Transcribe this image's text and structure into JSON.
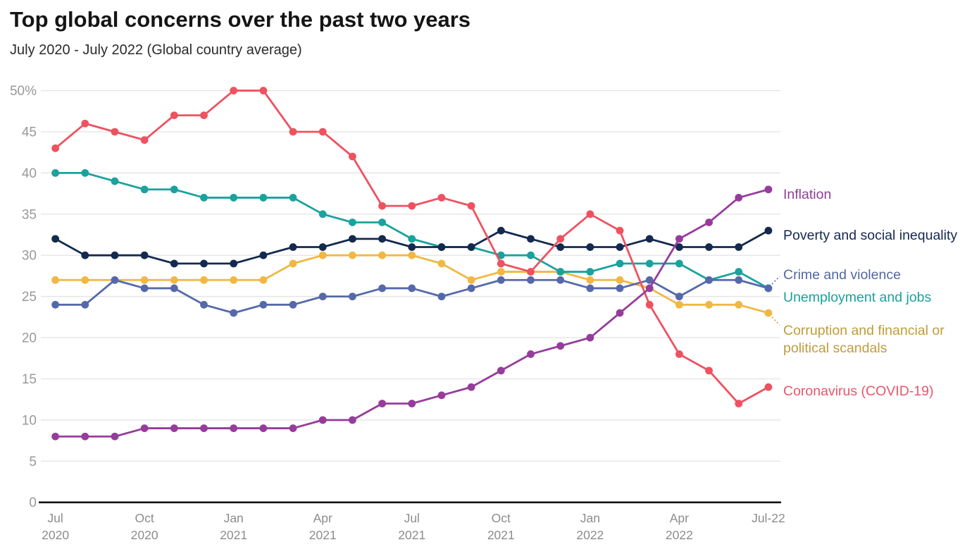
{
  "header": {
    "title": "Top global concerns over the past two years",
    "subtitle": "July 2020 - July 2022 (Global country average)"
  },
  "chart_data": {
    "type": "line",
    "title": "Top global concerns over the past two years",
    "subtitle": "July 2020 - July 2022 (Global country average)",
    "unit": "%",
    "ylim": [
      0,
      50
    ],
    "grid": "horizontal",
    "legend_position": "right-edge-labels",
    "x_categories": [
      "Jul 2020",
      "Aug 2020",
      "Sep 2020",
      "Oct 2020",
      "Nov 2020",
      "Dec 2020",
      "Jan 2021",
      "Feb 2021",
      "Mar 2021",
      "Apr 2021",
      "May 2021",
      "Jun 2021",
      "Jul 2021",
      "Aug 2021",
      "Sep 2021",
      "Oct 2021",
      "Nov 2021",
      "Dec 2021",
      "Jan 2022",
      "Feb 2022",
      "Mar 2022",
      "Apr 2022",
      "May 2022",
      "Jun 2022",
      "Jul 2022"
    ],
    "xticks": [
      {
        "month_index": 0,
        "line1": "Jul",
        "line2": "2020"
      },
      {
        "month_index": 3,
        "line1": "Oct",
        "line2": "2020"
      },
      {
        "month_index": 6,
        "line1": "Jan",
        "line2": "2021"
      },
      {
        "month_index": 9,
        "line1": "Apr",
        "line2": "2021"
      },
      {
        "month_index": 12,
        "line1": "Jul",
        "line2": "2021"
      },
      {
        "month_index": 15,
        "line1": "Oct",
        "line2": "2021"
      },
      {
        "month_index": 18,
        "line1": "Jan",
        "line2": "2022"
      },
      {
        "month_index": 21,
        "line1": "Apr",
        "line2": "2022"
      },
      {
        "month_index": 24,
        "line1": "Jul-22",
        "line2": ""
      }
    ],
    "yticks": [
      {
        "value": 50,
        "label": "50%"
      },
      {
        "value": 45,
        "label": "45"
      },
      {
        "value": 40,
        "label": "40"
      },
      {
        "value": 35,
        "label": "35"
      },
      {
        "value": 30,
        "label": "30"
      },
      {
        "value": 25,
        "label": "25"
      },
      {
        "value": 20,
        "label": "20"
      },
      {
        "value": 15,
        "label": "15"
      },
      {
        "value": 10,
        "label": "10"
      },
      {
        "value": 5,
        "label": "5"
      },
      {
        "value": 0,
        "label": "0"
      }
    ],
    "series": [
      {
        "key": "corruption",
        "label_lines": [
          "Corruption and financial or",
          "political scandals"
        ],
        "color": "#f0b843",
        "label_color": "#bf9d3a",
        "leader": true,
        "values": [
          27,
          27,
          27,
          27,
          27,
          27,
          27,
          27,
          29,
          30,
          30,
          30,
          30,
          29,
          27,
          28,
          28,
          28,
          27,
          27,
          26,
          24,
          24,
          24,
          23
        ]
      },
      {
        "key": "unemployment",
        "label_lines": [
          "Unemployment and jobs"
        ],
        "color": "#1aa29e",
        "label_color": "#1aa29e",
        "leader": false,
        "values": [
          40,
          40,
          39,
          38,
          38,
          37,
          37,
          37,
          37,
          35,
          34,
          34,
          32,
          31,
          31,
          30,
          30,
          28,
          28,
          29,
          29,
          29,
          27,
          28,
          26
        ]
      },
      {
        "key": "crime",
        "label_lines": [
          "Crime and violence"
        ],
        "color": "#5569aa",
        "label_color": "#52689f",
        "leader": true,
        "values": [
          24,
          24,
          27,
          26,
          26,
          24,
          23,
          24,
          24,
          25,
          25,
          26,
          26,
          25,
          26,
          27,
          27,
          27,
          26,
          26,
          27,
          25,
          27,
          27,
          26
        ]
      },
      {
        "key": "poverty",
        "label_lines": [
          "Poverty and social inequality"
        ],
        "color": "#14294e",
        "label_color": "#14294e",
        "leader": false,
        "values": [
          32,
          30,
          30,
          30,
          29,
          29,
          29,
          30,
          31,
          31,
          32,
          32,
          31,
          31,
          31,
          33,
          32,
          31,
          31,
          31,
          32,
          31,
          31,
          31,
          33
        ]
      },
      {
        "key": "coronavirus",
        "label_lines": [
          "Coronavirus (COVID-19)"
        ],
        "color": "#ee5260",
        "label_color": "#e8566b",
        "leader": false,
        "values": [
          43,
          46,
          45,
          44,
          47,
          47,
          50,
          50,
          45,
          45,
          42,
          36,
          36,
          37,
          36,
          29,
          28,
          32,
          35,
          33,
          24,
          18,
          16,
          12,
          14
        ]
      },
      {
        "key": "inflation",
        "label_lines": [
          "Inflation"
        ],
        "color": "#963c9b",
        "label_color": "#8f3f97",
        "leader": false,
        "values": [
          8,
          8,
          8,
          9,
          9,
          9,
          9,
          9,
          9,
          10,
          10,
          12,
          12,
          13,
          14,
          16,
          18,
          19,
          20,
          23,
          26,
          32,
          34,
          37,
          38
        ]
      }
    ]
  }
}
